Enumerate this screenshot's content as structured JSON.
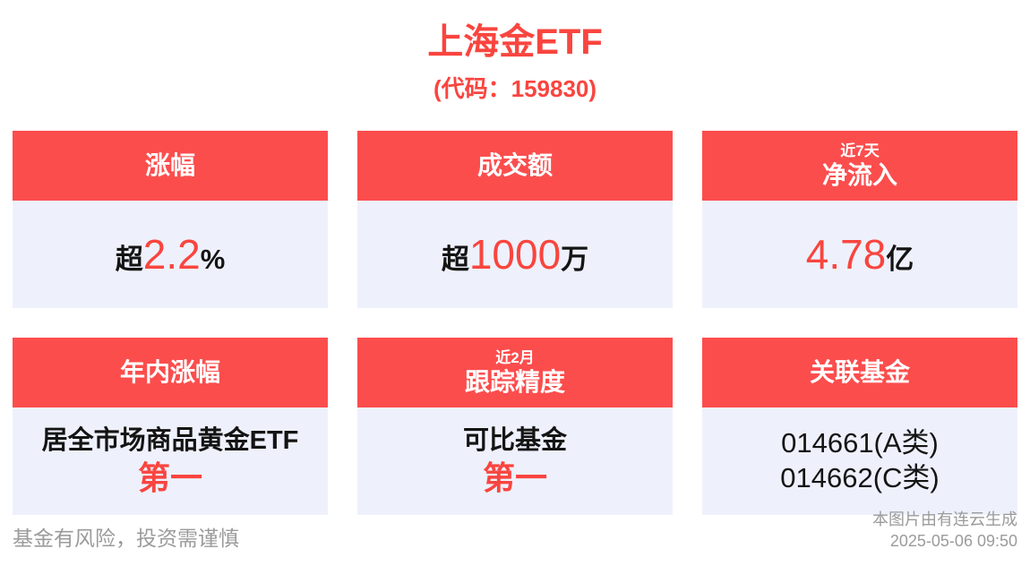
{
  "page": {
    "title": "上海金ETF",
    "subtitle": "(代码：159830)"
  },
  "colors": {
    "accent_red_text": "#f9453f",
    "header_red_bg": "#fc4d4d",
    "card_body_bg": "#eef1fc",
    "dark_text": "#141414",
    "muted_text": "#9b9b9b",
    "page_bg": "#ffffff"
  },
  "cards": {
    "change": {
      "header": "涨幅",
      "value_prefix": "超",
      "value_number": "2.2",
      "value_suffix": "%"
    },
    "turnover": {
      "header": "成交额",
      "value_prefix": "超",
      "value_number": "1000",
      "value_suffix": "万"
    },
    "net_inflow": {
      "header_small": "近7天",
      "header": "净流入",
      "value_number": "4.78",
      "value_suffix": "亿"
    },
    "ytd_change": {
      "header": "年内涨幅",
      "line1": "居全市场商品黄金ETF",
      "line2": "第一"
    },
    "tracking": {
      "header_small": "近2月",
      "header": "跟踪精度",
      "line1": "可比基金",
      "line2": "第一"
    },
    "related_funds": {
      "header": "关联基金",
      "line1": "014661(A类)",
      "line2": "014662(C类)"
    }
  },
  "footer": {
    "disclaimer": "基金有风险，投资需谨慎",
    "credit": "本图片由有连云生成",
    "timestamp": "2025-05-06 09:50"
  }
}
